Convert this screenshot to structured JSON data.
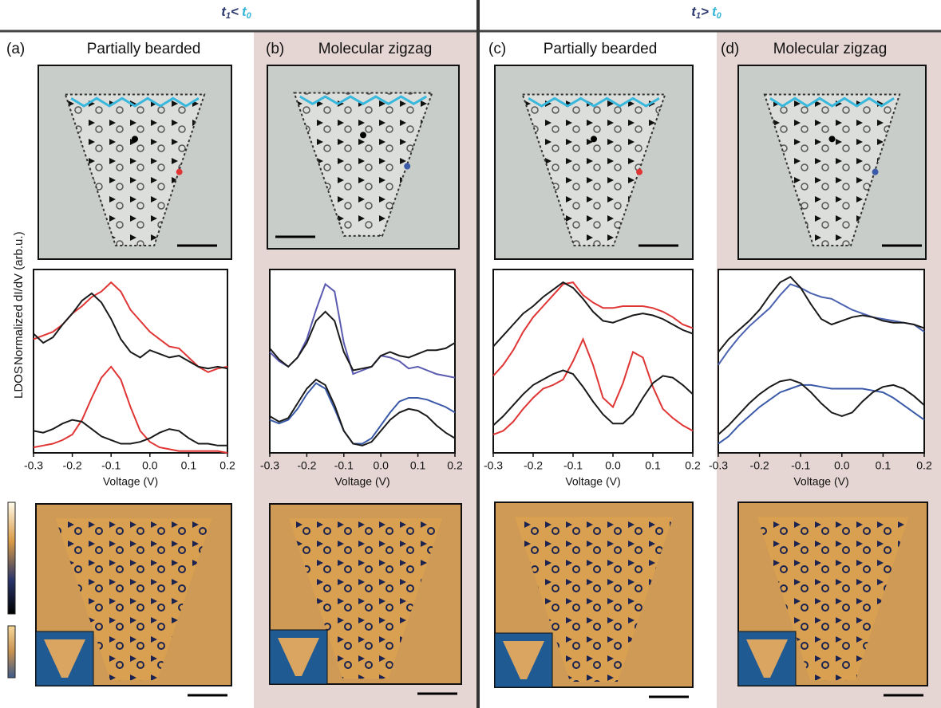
{
  "header": {
    "left": [
      "t",
      "1",
      "<",
      "t",
      "0"
    ],
    "right": [
      "t",
      "1",
      ">",
      "t",
      "0"
    ]
  },
  "ylabel_upper": "Normalized dI/dV (arb.u.)",
  "ylabel_lower": "LDOS",
  "panels": [
    {
      "label": "(a)",
      "title": "Partially bearded"
    },
    {
      "label": "(b)",
      "title": "Molecular zigzag"
    },
    {
      "label": "(c)",
      "title": "Partially bearded"
    },
    {
      "label": "(d)",
      "title": "Molecular zigzag"
    }
  ],
  "chart_data": [
    {
      "type": "line",
      "xlabel": "Voltage (V)",
      "x": [
        -0.3,
        -0.275,
        -0.25,
        -0.225,
        -0.2,
        -0.175,
        -0.15,
        -0.125,
        -0.1,
        -0.075,
        -0.05,
        -0.025,
        0,
        0.025,
        0.05,
        0.075,
        0.1,
        0.125,
        0.15,
        0.175,
        0.2
      ],
      "xlim": [
        -0.3,
        0.2
      ],
      "xticks": [
        -0.3,
        -0.2,
        -0.1,
        {
          "value": 0,
          "label": "0.0"
        },
        0.1,
        0.2
      ],
      "ylim": [
        0,
        1
      ],
      "series": [
        {
          "color": "#e03535",
          "values": [
            0.62,
            0.64,
            0.66,
            0.7,
            0.76,
            0.8,
            0.85,
            0.88,
            0.93,
            0.88,
            0.78,
            0.72,
            0.66,
            0.62,
            0.58,
            0.57,
            0.52,
            0.47,
            0.44,
            0.46,
            0.47
          ]
        },
        {
          "color": "#1a1a1a",
          "values": [
            0.65,
            0.6,
            0.63,
            0.7,
            0.76,
            0.83,
            0.87,
            0.82,
            0.73,
            0.62,
            0.55,
            0.52,
            0.56,
            0.54,
            0.52,
            0.53,
            0.5,
            0.47,
            0.46,
            0.47,
            0.46
          ]
        },
        {
          "color": "#e03535",
          "values": [
            0.03,
            0.04,
            0.05,
            0.07,
            0.1,
            0.18,
            0.3,
            0.41,
            0.47,
            0.4,
            0.25,
            0.12,
            0.06,
            0.03,
            0.02,
            0.01,
            0.01,
            0.01,
            0.01,
            0.01,
            0.0
          ]
        },
        {
          "color": "#1a1a1a",
          "values": [
            0.12,
            0.11,
            0.13,
            0.16,
            0.18,
            0.17,
            0.13,
            0.09,
            0.07,
            0.05,
            0.05,
            0.06,
            0.08,
            0.11,
            0.13,
            0.12,
            0.08,
            0.05,
            0.05,
            0.04,
            0.04
          ]
        }
      ]
    },
    {
      "type": "line",
      "xlabel": "Voltage (V)",
      "x": [
        -0.3,
        -0.275,
        -0.25,
        -0.225,
        -0.2,
        -0.175,
        -0.15,
        -0.125,
        -0.1,
        -0.075,
        -0.05,
        -0.025,
        0,
        0.025,
        0.05,
        0.075,
        0.1,
        0.125,
        0.15,
        0.175,
        0.2
      ],
      "xlim": [
        -0.3,
        0.2
      ],
      "xticks": [
        -0.3,
        -0.2,
        -0.1,
        {
          "value": 0,
          "label": "0.0"
        },
        0.1,
        0.2
      ],
      "ylim": [
        0,
        1
      ],
      "series": [
        {
          "color": "#5a5ab0",
          "values": [
            0.55,
            0.5,
            0.47,
            0.52,
            0.62,
            0.78,
            0.92,
            0.88,
            0.6,
            0.43,
            0.45,
            0.47,
            0.53,
            0.52,
            0.5,
            0.46,
            0.47,
            0.45,
            0.43,
            0.42,
            0.41
          ]
        },
        {
          "color": "#1a1a1a",
          "values": [
            0.57,
            0.51,
            0.47,
            0.52,
            0.6,
            0.72,
            0.77,
            0.72,
            0.55,
            0.45,
            0.46,
            0.47,
            0.53,
            0.55,
            0.53,
            0.52,
            0.54,
            0.56,
            0.56,
            0.57,
            0.6
          ]
        },
        {
          "color": "#3a5aa8",
          "values": [
            0.18,
            0.16,
            0.18,
            0.24,
            0.32,
            0.38,
            0.35,
            0.24,
            0.12,
            0.05,
            0.05,
            0.08,
            0.15,
            0.22,
            0.28,
            0.3,
            0.3,
            0.29,
            0.27,
            0.25,
            0.22
          ]
        },
        {
          "color": "#1a1a1a",
          "values": [
            0.2,
            0.17,
            0.19,
            0.27,
            0.35,
            0.4,
            0.37,
            0.26,
            0.12,
            0.05,
            0.04,
            0.06,
            0.12,
            0.18,
            0.22,
            0.24,
            0.23,
            0.2,
            0.15,
            0.11,
            0.08
          ]
        }
      ]
    },
    {
      "type": "line",
      "xlabel": "Voltage (V)",
      "x": [
        -0.3,
        -0.275,
        -0.25,
        -0.225,
        -0.2,
        -0.175,
        -0.15,
        -0.125,
        -0.1,
        -0.075,
        -0.05,
        -0.025,
        0,
        0.025,
        0.05,
        0.075,
        0.1,
        0.125,
        0.15,
        0.175,
        0.2
      ],
      "xlim": [
        -0.3,
        0.2
      ],
      "xticks": [
        -0.3,
        -0.2,
        -0.1,
        {
          "value": 0,
          "label": "0.0"
        },
        0.1,
        0.2
      ],
      "ylim": [
        0,
        1
      ],
      "series": [
        {
          "color": "#e03535",
          "values": [
            0.42,
            0.48,
            0.56,
            0.66,
            0.74,
            0.8,
            0.86,
            0.92,
            0.93,
            0.86,
            0.82,
            0.79,
            0.79,
            0.8,
            0.8,
            0.8,
            0.79,
            0.77,
            0.74,
            0.7,
            0.68
          ]
        },
        {
          "color": "#1a1a1a",
          "values": [
            0.58,
            0.64,
            0.7,
            0.76,
            0.8,
            0.85,
            0.89,
            0.93,
            0.9,
            0.84,
            0.77,
            0.72,
            0.71,
            0.73,
            0.75,
            0.76,
            0.75,
            0.73,
            0.7,
            0.67,
            0.65
          ]
        },
        {
          "color": "#e03535",
          "values": [
            0.1,
            0.12,
            0.17,
            0.24,
            0.3,
            0.35,
            0.37,
            0.4,
            0.5,
            0.62,
            0.48,
            0.3,
            0.25,
            0.38,
            0.55,
            0.52,
            0.36,
            0.24,
            0.19,
            0.15,
            0.12
          ]
        },
        {
          "color": "#1a1a1a",
          "values": [
            0.15,
            0.2,
            0.26,
            0.32,
            0.37,
            0.4,
            0.43,
            0.45,
            0.43,
            0.36,
            0.28,
            0.21,
            0.16,
            0.16,
            0.21,
            0.3,
            0.38,
            0.42,
            0.41,
            0.37,
            0.32
          ]
        }
      ]
    },
    {
      "type": "line",
      "xlabel": "Voltage (V)",
      "x": [
        -0.3,
        -0.275,
        -0.25,
        -0.225,
        -0.2,
        -0.175,
        -0.15,
        -0.125,
        -0.1,
        -0.075,
        -0.05,
        -0.025,
        0,
        0.025,
        0.05,
        0.075,
        0.1,
        0.125,
        0.15,
        0.175,
        0.2
      ],
      "xlim": [
        -0.3,
        0.2
      ],
      "xticks": [
        -0.3,
        -0.2,
        -0.1,
        {
          "value": 0,
          "label": "0.0"
        },
        0.1,
        0.2
      ],
      "ylim": [
        0,
        1
      ],
      "series": [
        {
          "color": "#4a62b0",
          "values": [
            0.48,
            0.56,
            0.63,
            0.69,
            0.74,
            0.79,
            0.86,
            0.92,
            0.9,
            0.87,
            0.85,
            0.84,
            0.81,
            0.78,
            0.76,
            0.74,
            0.73,
            0.72,
            0.71,
            0.7,
            0.66
          ]
        },
        {
          "color": "#1a1a1a",
          "values": [
            0.55,
            0.62,
            0.67,
            0.72,
            0.78,
            0.86,
            0.93,
            0.96,
            0.9,
            0.81,
            0.73,
            0.7,
            0.72,
            0.74,
            0.75,
            0.74,
            0.72,
            0.71,
            0.71,
            0.7,
            0.68
          ]
        },
        {
          "color": "#3a5aa8",
          "values": [
            0.05,
            0.09,
            0.15,
            0.2,
            0.25,
            0.29,
            0.33,
            0.35,
            0.37,
            0.37,
            0.36,
            0.35,
            0.35,
            0.35,
            0.35,
            0.34,
            0.33,
            0.3,
            0.26,
            0.22,
            0.18
          ]
        },
        {
          "color": "#1a1a1a",
          "values": [
            0.1,
            0.15,
            0.21,
            0.27,
            0.32,
            0.36,
            0.39,
            0.4,
            0.38,
            0.33,
            0.27,
            0.22,
            0.2,
            0.22,
            0.28,
            0.33,
            0.36,
            0.37,
            0.35,
            0.31,
            0.26
          ]
        }
      ]
    }
  ]
}
